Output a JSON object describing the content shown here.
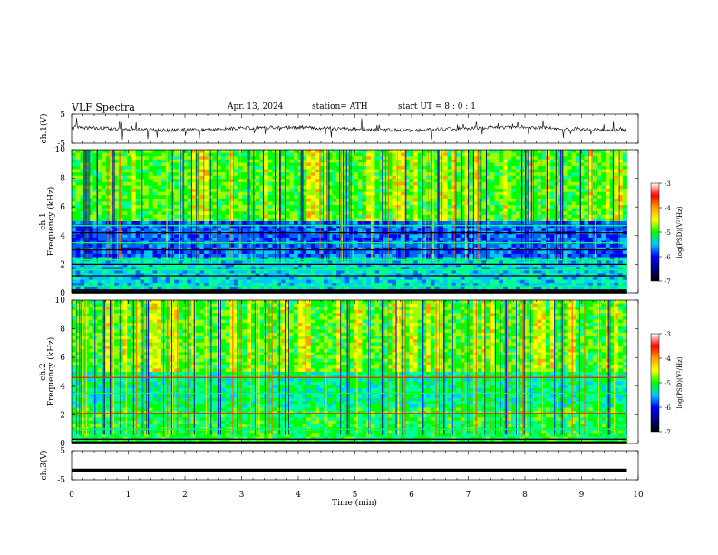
{
  "header": {
    "title": "VLF  Spectra",
    "date": "Apr. 13, 2024",
    "station": "station= ATH",
    "start_ut": "start  UT  =   8  : 0   : 1"
  },
  "colorbar": {
    "label": "log(PSD)(V²/Hz)",
    "ticks": [
      "-3",
      "-4",
      "-5",
      "-6",
      "-7"
    ],
    "stops": [
      "#ffffff",
      "#ff0000",
      "#ffa000",
      "#ffff00",
      "#00ff00",
      "#00c8ff",
      "#0000ff",
      "#000080",
      "#000000"
    ]
  },
  "chart_data": [
    {
      "type": "line",
      "ylabel": "ch.1(V)",
      "ylim": [
        -5,
        5
      ],
      "yticks": [
        "5",
        "-5"
      ],
      "xlim": [
        0,
        10
      ],
      "series_shape": "noisy trace near 0 V with frequent spikes"
    },
    {
      "type": "heatmap",
      "ylabel": "ch.1\nFrequency (kHz)",
      "ylabel_lines": [
        "ch.1",
        "Frequency  (kHz)"
      ],
      "ylim": [
        0,
        10
      ],
      "yticks": [
        "0",
        "2",
        "4",
        "6",
        "8",
        "10"
      ],
      "xlim": [
        0,
        10
      ],
      "data_extent_min": 9.8,
      "horizontal_bands_khz": [
        0.2,
        0.5,
        1.2,
        1.6,
        2.0,
        2.3,
        3.0,
        3.5,
        4.2,
        4.7
      ]
    },
    {
      "type": "heatmap",
      "ylabel": "ch.2\nFrequency (kHz)",
      "ylabel_lines": [
        "ch.2",
        "Frequency  (kHz)"
      ],
      "ylim": [
        0,
        10
      ],
      "yticks": [
        "0",
        "2",
        "4",
        "6",
        "8",
        "10"
      ],
      "xlim": [
        0,
        10
      ],
      "data_extent_min": 9.8,
      "horizontal_bands_khz": [
        0.3,
        1.0,
        2.1,
        3.5,
        4.6
      ]
    },
    {
      "type": "line",
      "ylabel": "ch.3(V)",
      "ylim": [
        -5,
        5
      ],
      "yticks": [
        "5",
        "-5"
      ],
      "xlim": [
        0,
        10
      ],
      "xlabel": "Time  (min)",
      "xticks": [
        "0",
        "1",
        "2",
        "3",
        "4",
        "5",
        "6",
        "7",
        "8",
        "9",
        "10"
      ],
      "constant_value": -1.8
    }
  ]
}
